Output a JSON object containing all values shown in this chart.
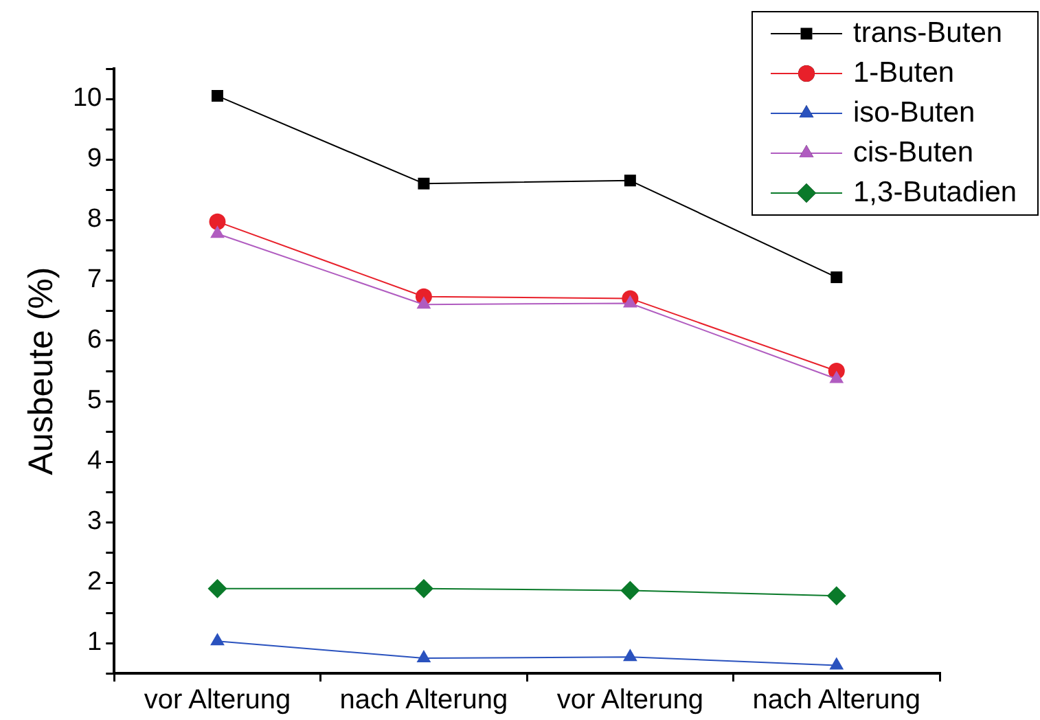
{
  "chart_data": {
    "type": "line",
    "ylabel": "Ausbeute (%)",
    "categories": [
      "vor Alterung",
      "nach Alterung",
      "vor Alterung",
      "nach Alterung"
    ],
    "series": [
      {
        "name": "trans-Buten",
        "color": "#000000",
        "marker": "square",
        "values": [
          10.05,
          8.6,
          8.65,
          7.05
        ]
      },
      {
        "name": "1-Buten",
        "color": "#e8202a",
        "marker": "circle",
        "values": [
          7.97,
          6.73,
          6.7,
          5.5
        ]
      },
      {
        "name": "iso-Buten",
        "color": "#2a52be",
        "marker": "triangle",
        "values": [
          1.03,
          0.75,
          0.77,
          0.63
        ]
      },
      {
        "name": "cis-Buten",
        "color": "#b05cc0",
        "marker": "triangle",
        "values": [
          7.77,
          6.6,
          6.62,
          5.37
        ]
      },
      {
        "name": "1,3-Butadien",
        "color": "#0a7a2a",
        "marker": "diamond",
        "values": [
          1.9,
          1.9,
          1.87,
          1.78
        ]
      }
    ],
    "ylim": [
      0.5,
      10.5
    ],
    "yticks": [
      {
        "value": 0.5,
        "label": null
      },
      1,
      {
        "value": 1.5,
        "label": null
      },
      2,
      {
        "value": 2.5,
        "label": null
      },
      3,
      {
        "value": 3.5,
        "label": null
      },
      4,
      {
        "value": 4.5,
        "label": null
      },
      5,
      {
        "value": 5.5,
        "label": null
      },
      6,
      {
        "value": 6.5,
        "label": null
      },
      7,
      {
        "value": 7.5,
        "label": null
      },
      8,
      {
        "value": 8.5,
        "label": null
      },
      9,
      {
        "value": 9.5,
        "label": null
      },
      10,
      {
        "value": 10.5,
        "label": null
      }
    ],
    "grid": false,
    "legend": "top right",
    "line_style": "solid"
  }
}
